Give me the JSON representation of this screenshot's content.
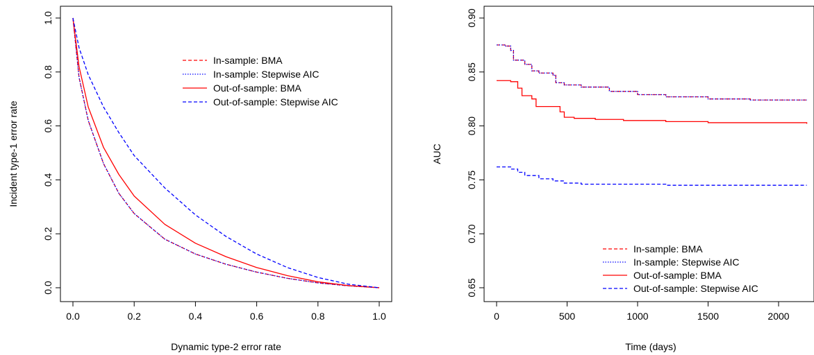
{
  "chart_data": [
    {
      "type": "line",
      "xlabel": "Dynamic type-2 error rate",
      "ylabel": "Incident type-1 error rate",
      "xlim": [
        0,
        1
      ],
      "ylim": [
        0,
        1
      ],
      "xticks": [
        "0.0",
        "0.2",
        "0.4",
        "0.6",
        "0.8",
        "1.0"
      ],
      "yticks": [
        "0.0",
        "0.2",
        "0.4",
        "0.6",
        "0.8",
        "1.0"
      ],
      "legend_position": "top-right",
      "series": [
        {
          "name": "In-sample: BMA",
          "color": "#ff0000",
          "line_style": "dashed",
          "x": [
            0,
            0.02,
            0.05,
            0.1,
            0.15,
            0.2,
            0.3,
            0.4,
            0.5,
            0.6,
            0.7,
            0.8,
            0.9,
            1.0
          ],
          "y": [
            1.0,
            0.78,
            0.62,
            0.46,
            0.35,
            0.275,
            0.18,
            0.125,
            0.087,
            0.058,
            0.035,
            0.018,
            0.007,
            0.0
          ]
        },
        {
          "name": "In-sample: Stepwise AIC",
          "color": "#0000ff",
          "line_style": "dotted",
          "x": [
            0,
            0.02,
            0.05,
            0.1,
            0.15,
            0.2,
            0.3,
            0.4,
            0.5,
            0.6,
            0.7,
            0.8,
            0.9,
            1.0
          ],
          "y": [
            1.0,
            0.78,
            0.62,
            0.46,
            0.35,
            0.275,
            0.18,
            0.125,
            0.087,
            0.058,
            0.035,
            0.018,
            0.007,
            0.0
          ]
        },
        {
          "name": "Out-of-sample: BMA",
          "color": "#ff0000",
          "line_style": "solid",
          "x": [
            0,
            0.02,
            0.05,
            0.1,
            0.15,
            0.2,
            0.3,
            0.4,
            0.5,
            0.6,
            0.7,
            0.8,
            0.9,
            1.0
          ],
          "y": [
            1.0,
            0.82,
            0.67,
            0.52,
            0.42,
            0.34,
            0.235,
            0.165,
            0.115,
            0.075,
            0.045,
            0.022,
            0.008,
            0.0
          ]
        },
        {
          "name": "Out-of-sample: Stepwise AIC",
          "color": "#0000ff",
          "line_style": "dashed",
          "x": [
            0,
            0.02,
            0.05,
            0.1,
            0.15,
            0.2,
            0.3,
            0.4,
            0.5,
            0.6,
            0.7,
            0.8,
            0.9,
            1.0
          ],
          "y": [
            1.0,
            0.89,
            0.79,
            0.67,
            0.575,
            0.49,
            0.37,
            0.27,
            0.19,
            0.125,
            0.075,
            0.038,
            0.013,
            0.0
          ]
        }
      ]
    },
    {
      "type": "line",
      "xlabel": "Time (days)",
      "ylabel": "AUC",
      "xlim": [
        0,
        2200
      ],
      "ylim": [
        0.65,
        0.9
      ],
      "xticks": [
        "0",
        "500",
        "1000",
        "1500",
        "2000"
      ],
      "yticks": [
        "0.65",
        "0.70",
        "0.75",
        "0.80",
        "0.85",
        "0.90"
      ],
      "legend_position": "bottom-right",
      "series": [
        {
          "name": "In-sample: BMA",
          "color": "#ff0000",
          "line_style": "dashed",
          "x": [
            0,
            60,
            100,
            120,
            200,
            250,
            300,
            400,
            420,
            480,
            600,
            800,
            1000,
            1200,
            1500,
            1800,
            2200
          ],
          "y": [
            0.875,
            0.874,
            0.87,
            0.861,
            0.857,
            0.851,
            0.849,
            0.847,
            0.84,
            0.838,
            0.836,
            0.832,
            0.829,
            0.827,
            0.825,
            0.824,
            0.824
          ]
        },
        {
          "name": "In-sample: Stepwise AIC",
          "color": "#0000ff",
          "line_style": "dotted",
          "x": [
            0,
            60,
            100,
            120,
            200,
            250,
            300,
            400,
            420,
            480,
            600,
            800,
            1000,
            1200,
            1500,
            1800,
            2200
          ],
          "y": [
            0.875,
            0.874,
            0.87,
            0.861,
            0.857,
            0.851,
            0.849,
            0.847,
            0.84,
            0.838,
            0.836,
            0.832,
            0.829,
            0.827,
            0.825,
            0.824,
            0.824
          ]
        },
        {
          "name": "Out-of-sample: BMA",
          "color": "#ff0000",
          "line_style": "solid",
          "x": [
            0,
            100,
            150,
            180,
            250,
            280,
            350,
            450,
            480,
            550,
            700,
            900,
            1200,
            1500,
            1800,
            2200
          ],
          "y": [
            0.842,
            0.841,
            0.835,
            0.828,
            0.825,
            0.818,
            0.818,
            0.813,
            0.808,
            0.807,
            0.806,
            0.805,
            0.804,
            0.803,
            0.803,
            0.802
          ]
        },
        {
          "name": "Out-of-sample: Stepwise AIC",
          "color": "#0000ff",
          "line_style": "dashed",
          "x": [
            0,
            100,
            150,
            200,
            300,
            400,
            480,
            600,
            800,
            1000,
            1200,
            1500,
            1800,
            2200
          ],
          "y": [
            0.762,
            0.76,
            0.757,
            0.754,
            0.751,
            0.749,
            0.747,
            0.746,
            0.746,
            0.746,
            0.745,
            0.745,
            0.745,
            0.745
          ]
        }
      ]
    }
  ]
}
